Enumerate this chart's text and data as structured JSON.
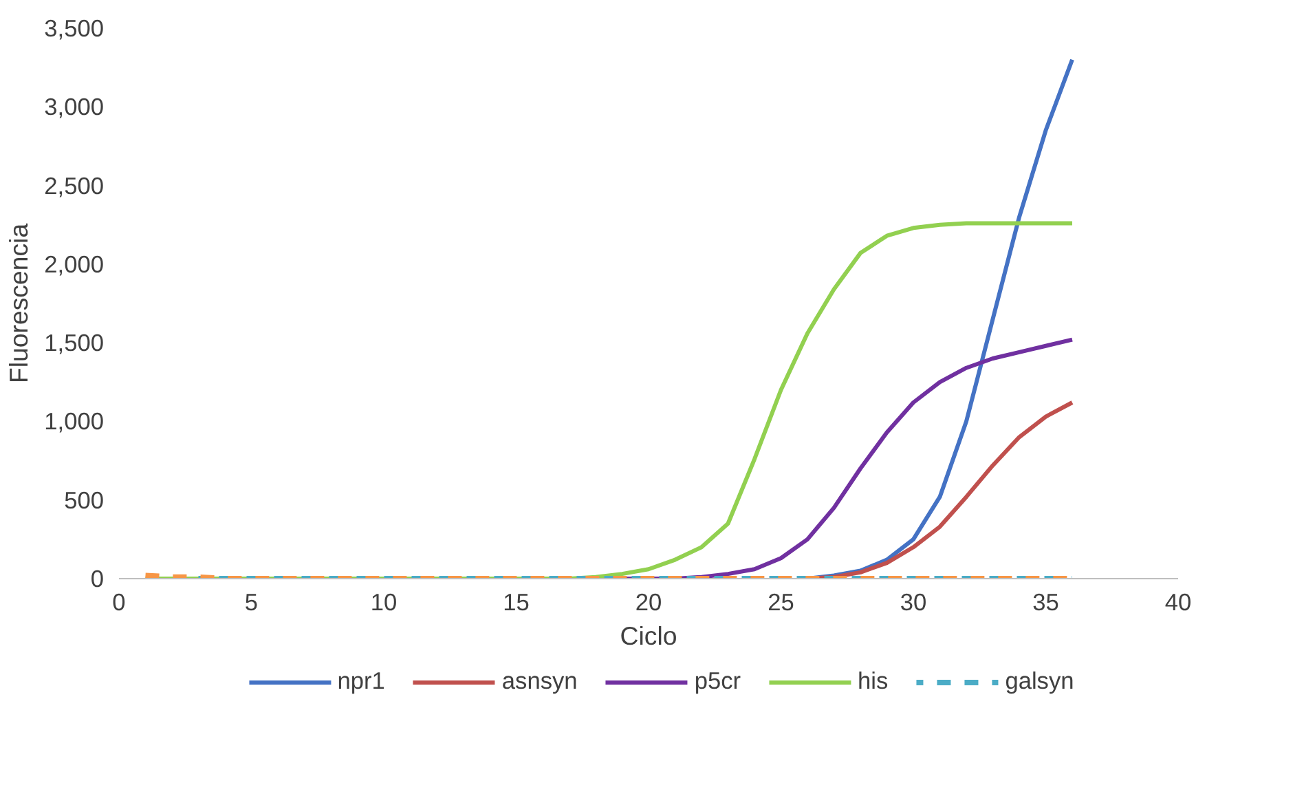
{
  "chart_data": {
    "type": "line",
    "xlabel": "Ciclo",
    "ylabel": "Fluorescencia",
    "x": [
      1,
      2,
      3,
      4,
      5,
      6,
      7,
      8,
      9,
      10,
      11,
      12,
      13,
      14,
      15,
      16,
      17,
      18,
      19,
      20,
      21,
      22,
      23,
      24,
      25,
      26,
      27,
      28,
      29,
      30,
      31,
      32,
      33,
      34,
      35,
      36
    ],
    "xlim": [
      0,
      40
    ],
    "xticks": [
      0,
      5,
      10,
      15,
      20,
      25,
      30,
      35,
      40
    ],
    "ylim": [
      0,
      3500
    ],
    "yticks": [
      0,
      {
        "value": 500,
        "label": "500"
      },
      {
        "value": 1000,
        "label": "1,000"
      },
      {
        "value": 1500,
        "label": "1,500"
      },
      {
        "value": 2000,
        "label": "2,000"
      },
      {
        "value": 2500,
        "label": "2,500"
      },
      {
        "value": 3000,
        "label": "3,000"
      },
      {
        "value": 3500,
        "label": "3,500"
      }
    ],
    "grid": false,
    "legend": "bottom",
    "marker": "none",
    "series": [
      {
        "name": "npr1",
        "color": "#4472c4",
        "line_style": "solid",
        "values": [
          null,
          null,
          null,
          null,
          null,
          null,
          null,
          null,
          null,
          null,
          null,
          null,
          null,
          null,
          null,
          null,
          null,
          null,
          null,
          null,
          null,
          null,
          null,
          null,
          null,
          0,
          20,
          50,
          120,
          250,
          520,
          1000,
          1650,
          2300,
          2850,
          3300
        ]
      },
      {
        "name": "asnsyn",
        "color": "#c0504d",
        "line_style": "solid",
        "values": [
          null,
          null,
          null,
          null,
          null,
          null,
          null,
          null,
          null,
          null,
          null,
          null,
          null,
          null,
          null,
          null,
          null,
          null,
          null,
          null,
          null,
          null,
          null,
          null,
          null,
          0,
          10,
          40,
          100,
          200,
          330,
          520,
          720,
          900,
          1030,
          1120
        ]
      },
      {
        "name": "p5cr",
        "color": "#7030a0",
        "line_style": "solid",
        "values": [
          null,
          null,
          null,
          null,
          null,
          null,
          null,
          null,
          null,
          null,
          null,
          null,
          null,
          null,
          null,
          null,
          null,
          0,
          0,
          0,
          0,
          10,
          30,
          60,
          130,
          250,
          450,
          700,
          930,
          1120,
          1250,
          1340,
          1400,
          1440,
          1480,
          1520
        ]
      },
      {
        "name": "his",
        "color": "#92d050",
        "line_style": "solid",
        "values": [
          0,
          0,
          0,
          0,
          0,
          0,
          0,
          0,
          0,
          0,
          0,
          0,
          0,
          0,
          0,
          0,
          0,
          10,
          30,
          60,
          120,
          200,
          350,
          760,
          1200,
          1560,
          1840,
          2070,
          2180,
          2230,
          2250,
          2260,
          2260,
          2260,
          2260,
          2260
        ]
      },
      {
        "name": "galsyn",
        "color": "#4bacc6",
        "line_style": "dashed",
        "values": [
          null,
          null,
          0,
          0,
          0,
          0,
          0,
          0,
          0,
          0,
          0,
          0,
          0,
          0,
          0,
          0,
          0,
          0,
          0,
          0,
          0,
          0,
          0,
          0,
          0,
          0,
          0,
          0,
          0,
          0,
          0,
          0,
          0,
          0,
          0,
          0
        ]
      },
      {
        "color": "#f79646",
        "line_style": "dashed",
        "values": [
          20,
          10,
          10,
          0,
          0,
          0,
          0,
          0,
          0,
          0,
          0,
          0,
          0,
          0,
          0,
          0,
          0,
          0,
          0,
          0,
          0,
          0,
          0,
          0,
          0,
          0,
          0,
          0,
          0,
          0,
          0,
          0,
          0,
          0,
          0,
          0
        ]
      }
    ]
  }
}
